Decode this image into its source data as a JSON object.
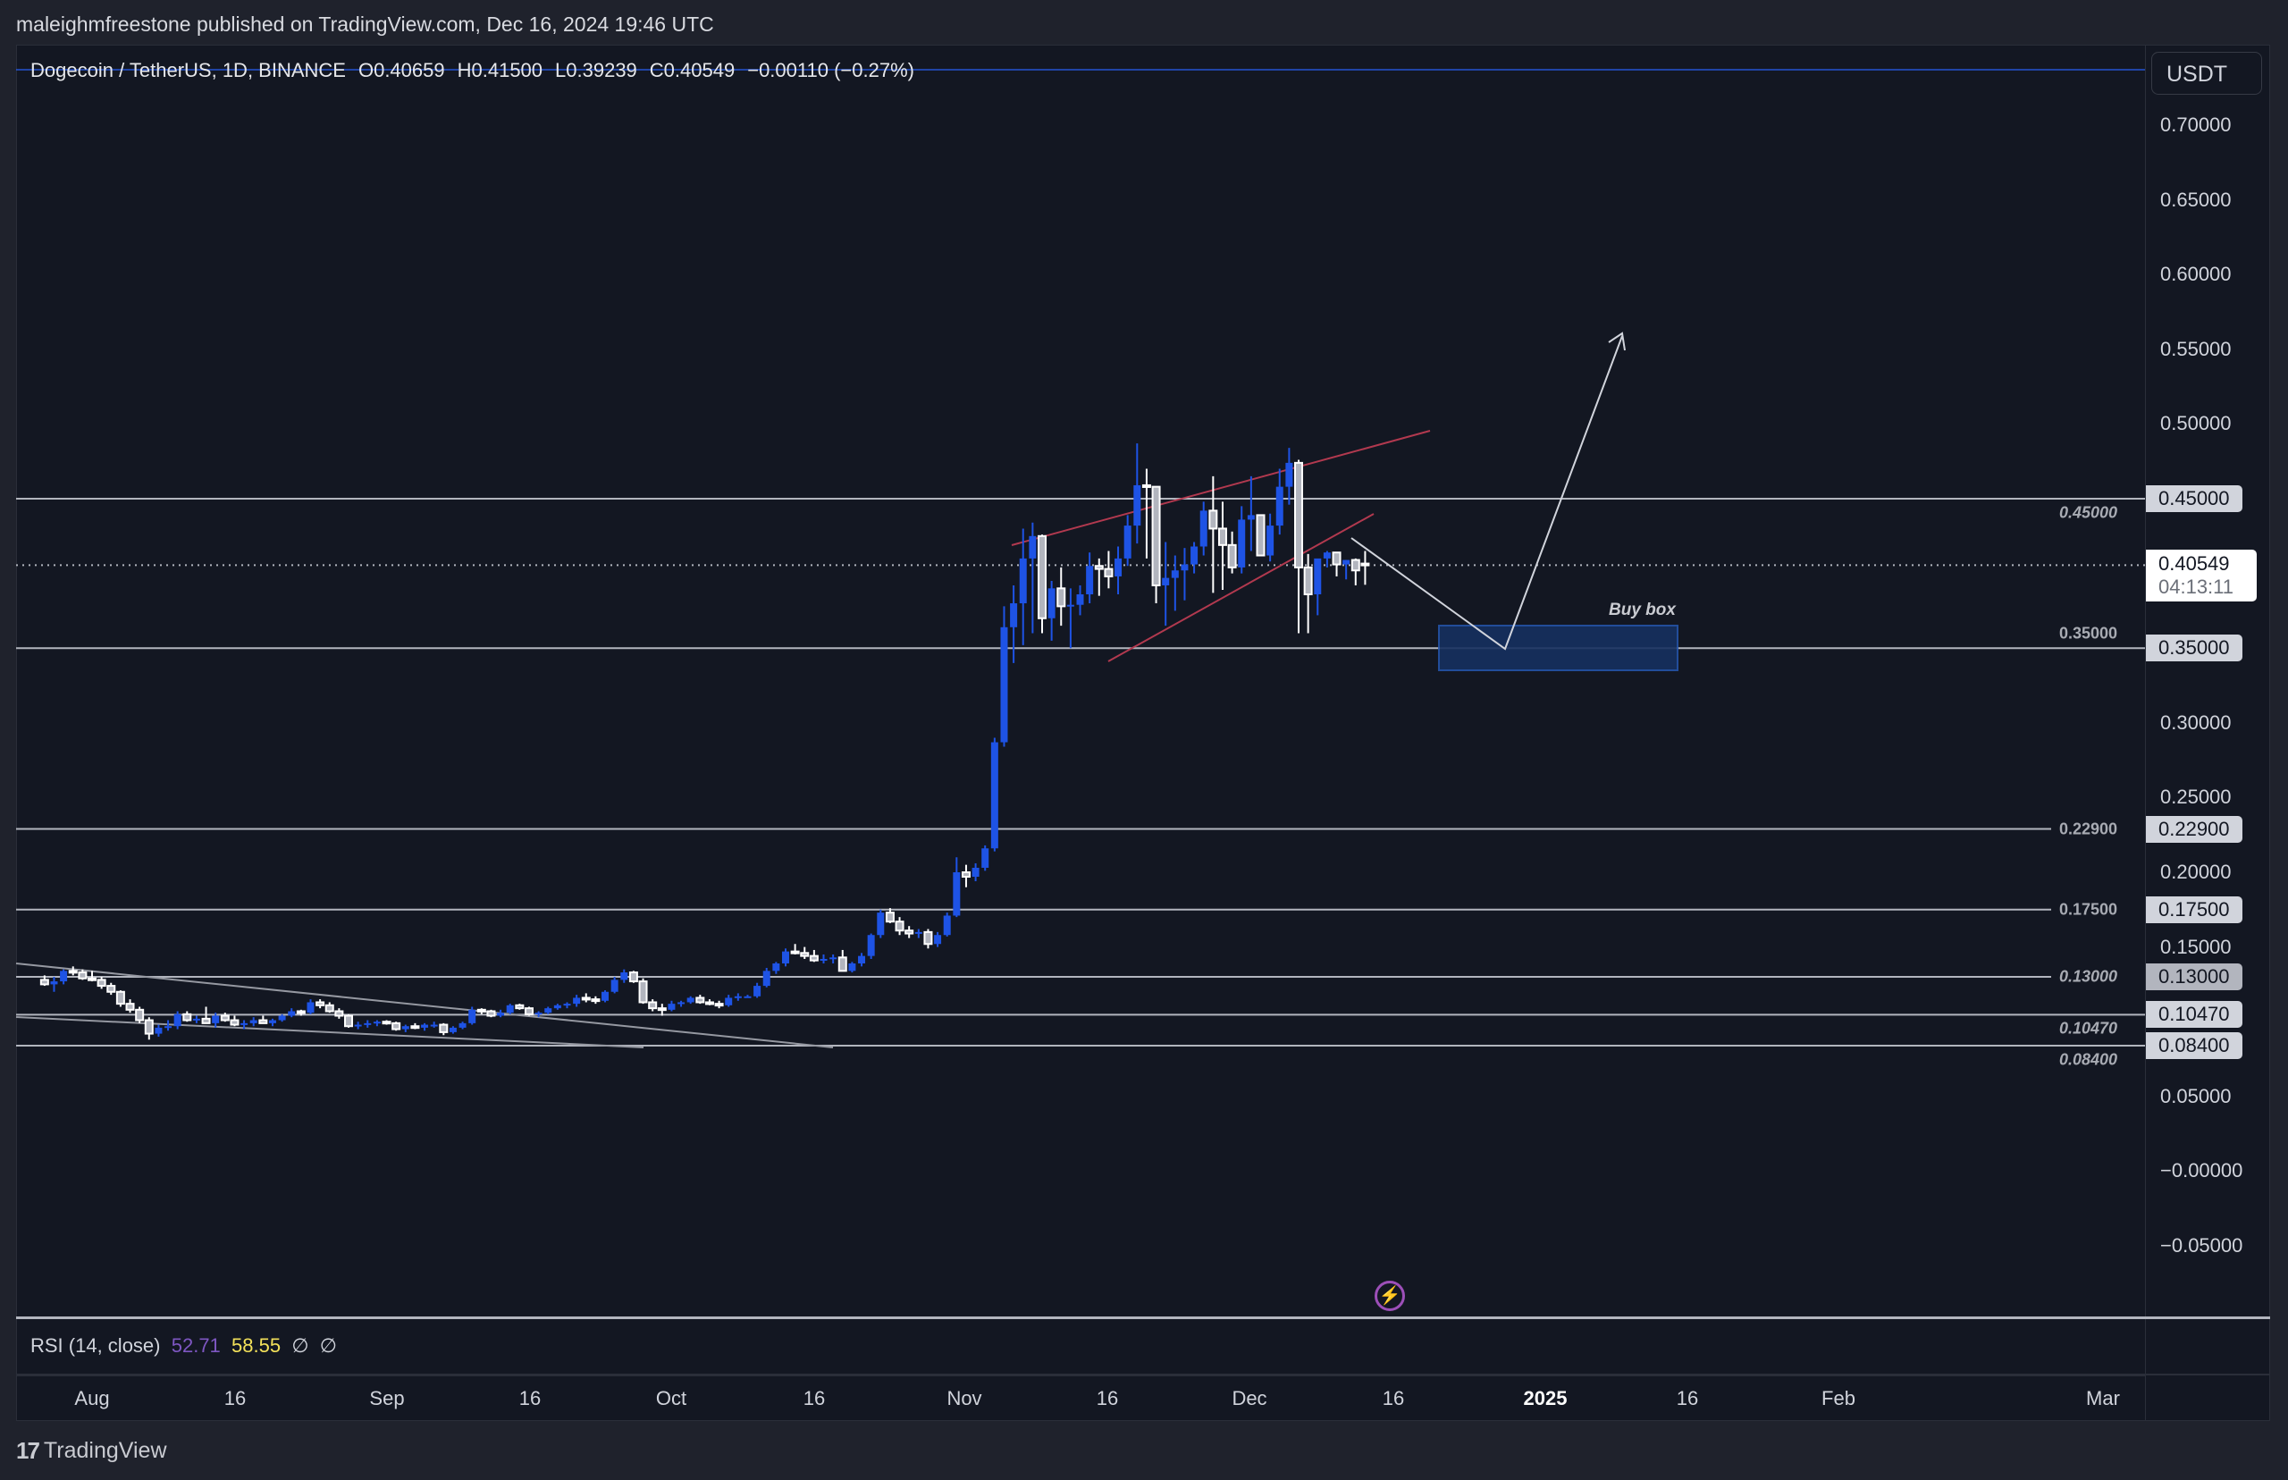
{
  "header": {
    "published": "maleighmfreestone published on TradingView.com, Dec 16, 2024 19:46 UTC"
  },
  "legend": {
    "symbol": "Dogecoin / TetherUS, 1D, BINANCE",
    "open": "O0.40659",
    "high": "H0.41500",
    "low": "L0.39239",
    "close": "C0.40549",
    "change": "−0.00110 (−0.27%)"
  },
  "price_axis": {
    "currency": "USDT",
    "ticks": [
      "0.70000",
      "0.65000",
      "0.60000",
      "0.55000",
      "0.50000",
      "0.30000",
      "0.25000",
      "0.20000",
      "0.15000",
      "0.05000",
      "−0.00000",
      "−0.05000"
    ],
    "last_price": "0.40549",
    "countdown": "04:13:11"
  },
  "rsi": {
    "label": "RSI (14, close)",
    "value": "52.71",
    "ma": "58.55",
    "na1": "∅",
    "na2": "∅"
  },
  "time_axis": {
    "labels": [
      "Aug",
      "16",
      "Sep",
      "16",
      "Oct",
      "16",
      "Nov",
      "16",
      "Dec",
      "16",
      "2025",
      "16",
      "Feb",
      "Mar"
    ]
  },
  "annotations": {
    "buy_box": "Buy box"
  },
  "footer": {
    "brand": "TradingView",
    "mark": "17"
  },
  "colors": {
    "background": "#131722",
    "up_candle": "#1e53e5",
    "down_candle": "#b2b5be",
    "channel_lines": "#b2394f",
    "hlines": "#b2b5be",
    "buy_box_fill": "#16305f",
    "rsi_value": "#7e57c2",
    "rsi_ma": "#f3e15a"
  },
  "chart_data": {
    "type": "candlestick",
    "title": "Dogecoin / TetherUS, 1D, BINANCE",
    "xlabel": "",
    "ylabel": "USDT",
    "ylim": [
      -0.09,
      0.72
    ],
    "x_ticks": [
      "Aug",
      "16",
      "Sep",
      "16",
      "Oct",
      "16",
      "Nov",
      "16",
      "Dec",
      "16",
      "2025",
      "16",
      "Feb",
      "Mar"
    ],
    "y_ticks": [
      0.7,
      0.65,
      0.6,
      0.55,
      0.5,
      0.45,
      0.4,
      0.35,
      0.3,
      0.25,
      0.2,
      0.15,
      0.1,
      0.05,
      0.0,
      -0.05
    ],
    "horizontal_levels": [
      {
        "price": 0.45,
        "label": "0.45000",
        "style": "italic"
      },
      {
        "price": 0.35,
        "label": "0.35000",
        "style": "bold"
      },
      {
        "price": 0.229,
        "label": "0.22900",
        "style": "bold"
      },
      {
        "price": 0.175,
        "label": "0.17500",
        "style": "bold"
      },
      {
        "price": 0.13,
        "label": "0.13000",
        "style": "italic"
      },
      {
        "price": 0.1047,
        "label": "0.10470",
        "style": "italic"
      },
      {
        "price": 0.084,
        "label": "0.08400",
        "style": "italic"
      }
    ],
    "last": {
      "open": 0.40659,
      "high": 0.415,
      "low": 0.39239,
      "close": 0.40549
    },
    "buy_box": {
      "from_price": 0.334,
      "to_price": 0.364,
      "label": "Buy box"
    },
    "projection": [
      {
        "date": "Dec 12",
        "price": 0.42
      },
      {
        "date": "Dec 29",
        "price": 0.348
      },
      {
        "date": "Jan 12",
        "price": 0.56
      }
    ],
    "start_date": "Jul 27",
    "candles": [
      [
        0.128,
        0.131,
        0.124,
        0.125
      ],
      [
        0.125,
        0.13,
        0.12,
        0.127
      ],
      [
        0.127,
        0.135,
        0.125,
        0.134
      ],
      [
        0.134,
        0.137,
        0.131,
        0.133
      ],
      [
        0.133,
        0.135,
        0.128,
        0.129
      ],
      [
        0.129,
        0.134,
        0.127,
        0.128
      ],
      [
        0.128,
        0.13,
        0.122,
        0.124
      ],
      [
        0.124,
        0.126,
        0.118,
        0.12
      ],
      [
        0.12,
        0.121,
        0.11,
        0.112
      ],
      [
        0.112,
        0.115,
        0.106,
        0.108
      ],
      [
        0.108,
        0.11,
        0.099,
        0.101
      ],
      [
        0.101,
        0.103,
        0.088,
        0.092
      ],
      [
        0.092,
        0.098,
        0.09,
        0.096
      ],
      [
        0.096,
        0.101,
        0.094,
        0.097
      ],
      [
        0.097,
        0.107,
        0.095,
        0.105
      ],
      [
        0.105,
        0.107,
        0.1,
        0.101
      ],
      [
        0.101,
        0.104,
        0.099,
        0.102
      ],
      [
        0.102,
        0.11,
        0.1,
        0.099
      ],
      [
        0.099,
        0.106,
        0.096,
        0.104
      ],
      [
        0.104,
        0.106,
        0.1,
        0.101
      ],
      [
        0.101,
        0.104,
        0.097,
        0.098
      ],
      [
        0.098,
        0.101,
        0.095,
        0.099
      ],
      [
        0.099,
        0.103,
        0.097,
        0.101
      ],
      [
        0.101,
        0.104,
        0.099,
        0.099
      ],
      [
        0.099,
        0.102,
        0.097,
        0.101
      ],
      [
        0.101,
        0.105,
        0.1,
        0.104
      ],
      [
        0.104,
        0.109,
        0.103,
        0.107
      ],
      [
        0.107,
        0.108,
        0.104,
        0.106
      ],
      [
        0.106,
        0.115,
        0.105,
        0.113
      ],
      [
        0.113,
        0.115,
        0.109,
        0.111
      ],
      [
        0.111,
        0.113,
        0.106,
        0.107
      ],
      [
        0.107,
        0.109,
        0.102,
        0.104
      ],
      [
        0.104,
        0.105,
        0.096,
        0.097
      ],
      [
        0.097,
        0.1,
        0.095,
        0.098
      ],
      [
        0.098,
        0.101,
        0.096,
        0.099
      ],
      [
        0.099,
        0.101,
        0.097,
        0.1
      ],
      [
        0.1,
        0.101,
        0.098,
        0.099
      ],
      [
        0.099,
        0.1,
        0.094,
        0.095
      ],
      [
        0.095,
        0.098,
        0.093,
        0.097
      ],
      [
        0.097,
        0.099,
        0.095,
        0.096
      ],
      [
        0.096,
        0.099,
        0.094,
        0.098
      ],
      [
        0.098,
        0.1,
        0.096,
        0.098
      ],
      [
        0.098,
        0.099,
        0.091,
        0.093
      ],
      [
        0.093,
        0.097,
        0.092,
        0.096
      ],
      [
        0.096,
        0.1,
        0.095,
        0.099
      ],
      [
        0.099,
        0.11,
        0.098,
        0.108
      ],
      [
        0.108,
        0.109,
        0.105,
        0.107
      ],
      [
        0.107,
        0.108,
        0.103,
        0.104
      ],
      [
        0.104,
        0.108,
        0.103,
        0.106
      ],
      [
        0.106,
        0.112,
        0.105,
        0.111
      ],
      [
        0.111,
        0.112,
        0.108,
        0.109
      ],
      [
        0.109,
        0.11,
        0.104,
        0.105
      ],
      [
        0.105,
        0.107,
        0.103,
        0.106
      ],
      [
        0.106,
        0.11,
        0.105,
        0.109
      ],
      [
        0.109,
        0.112,
        0.108,
        0.111
      ],
      [
        0.111,
        0.113,
        0.109,
        0.112
      ],
      [
        0.112,
        0.118,
        0.11,
        0.116
      ],
      [
        0.116,
        0.119,
        0.113,
        0.115
      ],
      [
        0.115,
        0.117,
        0.112,
        0.114
      ],
      [
        0.114,
        0.121,
        0.113,
        0.12
      ],
      [
        0.12,
        0.13,
        0.119,
        0.128
      ],
      [
        0.128,
        0.135,
        0.126,
        0.133
      ],
      [
        0.133,
        0.134,
        0.126,
        0.127
      ],
      [
        0.127,
        0.129,
        0.112,
        0.113
      ],
      [
        0.113,
        0.115,
        0.107,
        0.109
      ],
      [
        0.109,
        0.112,
        0.104,
        0.108
      ],
      [
        0.108,
        0.114,
        0.107,
        0.112
      ],
      [
        0.112,
        0.114,
        0.11,
        0.113
      ],
      [
        0.113,
        0.117,
        0.112,
        0.116
      ],
      [
        0.116,
        0.118,
        0.112,
        0.113
      ],
      [
        0.113,
        0.115,
        0.111,
        0.112
      ],
      [
        0.112,
        0.114,
        0.109,
        0.111
      ],
      [
        0.111,
        0.118,
        0.11,
        0.116
      ],
      [
        0.116,
        0.119,
        0.114,
        0.117
      ],
      [
        0.117,
        0.118,
        0.116,
        0.117
      ],
      [
        0.117,
        0.126,
        0.116,
        0.124
      ],
      [
        0.124,
        0.136,
        0.123,
        0.134
      ],
      [
        0.134,
        0.14,
        0.132,
        0.139
      ],
      [
        0.139,
        0.149,
        0.137,
        0.147
      ],
      [
        0.147,
        0.152,
        0.145,
        0.146
      ],
      [
        0.146,
        0.15,
        0.142,
        0.144
      ],
      [
        0.144,
        0.148,
        0.14,
        0.141
      ],
      [
        0.141,
        0.145,
        0.139,
        0.142
      ],
      [
        0.142,
        0.145,
        0.139,
        0.143
      ],
      [
        0.143,
        0.148,
        0.135,
        0.134
      ],
      [
        0.134,
        0.14,
        0.133,
        0.139
      ],
      [
        0.139,
        0.146,
        0.137,
        0.144
      ],
      [
        0.144,
        0.159,
        0.142,
        0.158
      ],
      [
        0.158,
        0.175,
        0.156,
        0.173
      ],
      [
        0.173,
        0.176,
        0.166,
        0.167
      ],
      [
        0.167,
        0.17,
        0.158,
        0.161
      ],
      [
        0.161,
        0.164,
        0.156,
        0.159
      ],
      [
        0.159,
        0.162,
        0.156,
        0.16
      ],
      [
        0.16,
        0.162,
        0.149,
        0.152
      ],
      [
        0.152,
        0.16,
        0.15,
        0.158
      ],
      [
        0.158,
        0.173,
        0.157,
        0.171
      ],
      [
        0.171,
        0.21,
        0.17,
        0.2
      ],
      [
        0.2,
        0.205,
        0.19,
        0.197
      ],
      [
        0.197,
        0.206,
        0.194,
        0.203
      ],
      [
        0.203,
        0.218,
        0.201,
        0.216
      ],
      [
        0.216,
        0.29,
        0.214,
        0.287
      ],
      [
        0.287,
        0.378,
        0.284,
        0.364
      ],
      [
        0.364,
        0.392,
        0.34,
        0.38
      ],
      [
        0.38,
        0.43,
        0.352,
        0.41
      ],
      [
        0.41,
        0.434,
        0.36,
        0.425
      ],
      [
        0.425,
        0.426,
        0.36,
        0.37
      ],
      [
        0.37,
        0.395,
        0.355,
        0.39
      ],
      [
        0.39,
        0.404,
        0.365,
        0.378
      ],
      [
        0.378,
        0.39,
        0.35,
        0.379
      ],
      [
        0.379,
        0.392,
        0.372,
        0.386
      ],
      [
        0.386,
        0.414,
        0.38,
        0.405
      ],
      [
        0.405,
        0.41,
        0.385,
        0.403
      ],
      [
        0.403,
        0.415,
        0.39,
        0.398
      ],
      [
        0.398,
        0.418,
        0.386,
        0.41
      ],
      [
        0.41,
        0.439,
        0.405,
        0.432
      ],
      [
        0.432,
        0.487,
        0.42,
        0.459
      ],
      [
        0.459,
        0.47,
        0.41,
        0.458
      ],
      [
        0.458,
        0.426,
        0.38,
        0.392
      ],
      [
        0.392,
        0.421,
        0.365,
        0.397
      ],
      [
        0.397,
        0.412,
        0.375,
        0.402
      ],
      [
        0.402,
        0.417,
        0.382,
        0.406
      ],
      [
        0.406,
        0.421,
        0.4,
        0.418
      ],
      [
        0.418,
        0.448,
        0.412,
        0.442
      ],
      [
        0.442,
        0.465,
        0.387,
        0.43
      ],
      [
        0.43,
        0.448,
        0.389,
        0.419
      ],
      [
        0.419,
        0.428,
        0.4,
        0.404
      ],
      [
        0.404,
        0.445,
        0.4,
        0.436
      ],
      [
        0.436,
        0.465,
        0.415,
        0.439
      ],
      [
        0.439,
        0.438,
        0.416,
        0.412
      ],
      [
        0.412,
        0.44,
        0.408,
        0.432
      ],
      [
        0.432,
        0.47,
        0.426,
        0.458
      ],
      [
        0.458,
        0.484,
        0.446,
        0.474
      ],
      [
        0.474,
        0.476,
        0.36,
        0.404
      ],
      [
        0.404,
        0.413,
        0.36,
        0.386
      ],
      [
        0.386,
        0.408,
        0.372,
        0.41
      ],
      [
        0.41,
        0.415,
        0.404,
        0.414
      ],
      [
        0.414,
        0.412,
        0.398,
        0.406
      ],
      [
        0.406,
        0.409,
        0.396,
        0.409
      ],
      [
        0.409,
        0.41,
        0.392,
        0.402
      ],
      [
        0.40659,
        0.415,
        0.39239,
        0.40549
      ]
    ]
  }
}
